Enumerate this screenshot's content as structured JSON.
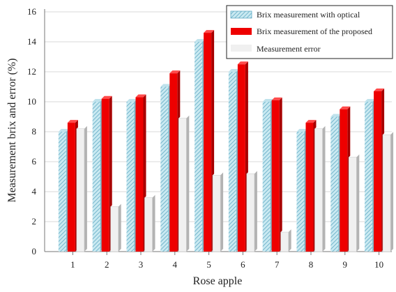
{
  "chart_data": {
    "type": "bar",
    "title": "",
    "xlabel": "Rose apple",
    "ylabel": "Measurement brix and error (%)",
    "categories": [
      "1",
      "2",
      "3",
      "4",
      "5",
      "6",
      "7",
      "8",
      "9",
      "10"
    ],
    "ylim": [
      0,
      16
    ],
    "yticks": [
      0,
      2,
      4,
      6,
      8,
      10,
      12,
      14,
      16
    ],
    "grid": true,
    "legend_position": "top-right",
    "series": [
      {
        "name": "Brix measurement with optical",
        "values": [
          8,
          10,
          10,
          11,
          14,
          12,
          10,
          8,
          9,
          10
        ],
        "color": "#9fd3e0",
        "pattern": "diagonal-hatch"
      },
      {
        "name": "Brix measurement of the proposed",
        "values": [
          8.6,
          10.2,
          10.3,
          11.9,
          14.6,
          12.5,
          10.1,
          8.6,
          9.5,
          10.7
        ],
        "color": "#ee0000"
      },
      {
        "name": "Measurement error",
        "values": [
          8.2,
          3.0,
          3.6,
          8.9,
          5.1,
          5.2,
          1.3,
          8.2,
          6.3,
          7.8
        ],
        "color": "#f0f0f0"
      }
    ]
  }
}
